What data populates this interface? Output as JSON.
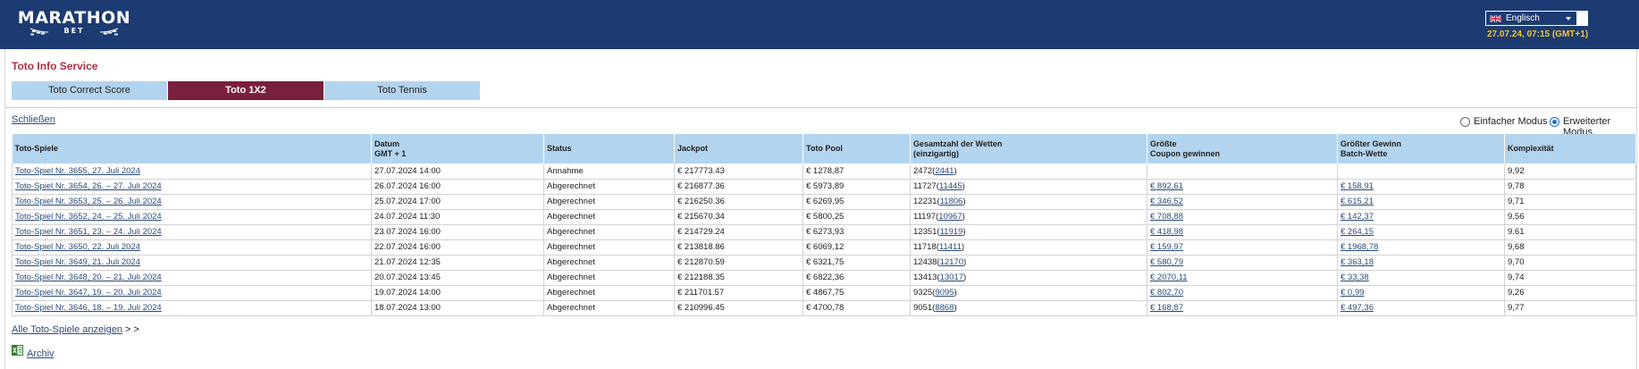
{
  "header": {
    "logo_main": "MARATHON",
    "logo_sub": "BET",
    "language": "Englisch",
    "datetime": "27.07.24,  07:15 (GMT+1)"
  },
  "page": {
    "section_title": "Toto Info Service",
    "tabs": [
      {
        "label": "Toto Correct Score",
        "active": false
      },
      {
        "label": "Toto 1X2",
        "active": true
      },
      {
        "label": "Toto Tennis",
        "active": false
      }
    ],
    "close_label": "Schließen",
    "mode_simple": "Einfacher Modus",
    "mode_extended": "Erweiterter Modus",
    "selected_mode": "extended",
    "all_games_label": "Alle Toto-Spiele anzeigen",
    "all_games_suffix": " > >",
    "archive_label": "Archiv"
  },
  "table": {
    "headers": {
      "game": "Toto-Spiele",
      "date_1": "Datum",
      "date_2": "GMT + 1",
      "status": "Status",
      "jackpot": "Jackpot",
      "pool": "Toto Pool",
      "bets_1": "Gesamtzahl der Wetten",
      "bets_2": "(einzigartig)",
      "coupon_1": "Größte",
      "coupon_2": "Coupon gewinnen",
      "batch_1": "Größter Gewinn",
      "batch_2": "Batch-Wette",
      "complexity": "Komplexität"
    },
    "rows": [
      {
        "game": "Toto-Spiel Nr. 3655, 27. Juli 2024",
        "date": "27.07.2024 14:00",
        "status": "Annahme",
        "jackpot": "€ 217773.43",
        "pool": "€ 1278,87",
        "bets": "2472",
        "unique": "2441",
        "coupon": "",
        "batch": "",
        "complexity": "9,92"
      },
      {
        "game": "Toto-Spiel Nr. 3654, 26. – 27. Juli 2024",
        "date": "26.07.2024 16:00",
        "status": "Abgerechnet",
        "jackpot": "€ 216877.36",
        "pool": "€ 5973,89",
        "bets": "11727",
        "unique": "11445",
        "coupon": "€ 892,61",
        "batch": "€ 158,91",
        "complexity": "9,78"
      },
      {
        "game": "Toto-Spiel Nr. 3653, 25. – 26. Juli 2024",
        "date": "25.07.2024 17:00",
        "status": "Abgerechnet",
        "jackpot": "€ 216250.36",
        "pool": "€ 6269,95",
        "bets": "12231",
        "unique": "11806",
        "coupon": "€ 346,52",
        "batch": "€ 615,21",
        "complexity": "9,71"
      },
      {
        "game": "Toto-Spiel Nr. 3652, 24. – 25. Juli 2024",
        "date": "24.07.2024 11:30",
        "status": "Abgerechnet",
        "jackpot": "€ 215670.34",
        "pool": "€ 5800,25",
        "bets": "11197",
        "unique": "10967",
        "coupon": "€ 708,88",
        "batch": "€ 142,37",
        "complexity": "9,56"
      },
      {
        "game": "Toto-Spiel Nr. 3651, 23. – 24. Juli 2024",
        "date": "23.07.2024 16:00",
        "status": "Abgerechnet",
        "jackpot": "€ 214729.24",
        "pool": "€ 6273,93",
        "bets": "12351",
        "unique": "11919",
        "coupon": "€ 418,98",
        "batch": "€ 264,15",
        "complexity": "9.61"
      },
      {
        "game": "Toto-Spiel Nr. 3650, 22. Juli 2024",
        "date": "22.07.2024 16:00",
        "status": "Abgerechnet",
        "jackpot": "€ 213818.86",
        "pool": "€ 6069,12",
        "bets": "11718",
        "unique": "11411",
        "coupon": "€ 159,97",
        "batch": "€ 1968,78",
        "complexity": "9,68"
      },
      {
        "game": "Toto-Spiel Nr. 3649, 21. Juli 2024",
        "date": "21.07.2024 12:35",
        "status": "Abgerechnet",
        "jackpot": "€ 212870.59",
        "pool": "€ 6321,75",
        "bets": "12438",
        "unique": "12170",
        "coupon": "€ 580,79",
        "batch": "€ 363,18",
        "complexity": "9,70"
      },
      {
        "game": "Toto-Spiel Nr. 3648, 20. – 21. Juli 2024",
        "date": "20.07.2024 13:45",
        "status": "Abgerechnet",
        "jackpot": "€ 212188.35",
        "pool": "€ 6822,36",
        "bets": "13413",
        "unique": "13017",
        "coupon": "€ 2070,11",
        "batch": "€ 33,38",
        "complexity": "9,74"
      },
      {
        "game": "Toto-Spiel Nr. 3647, 19. – 20. Juli 2024",
        "date": "19.07.2024 14:00",
        "status": "Abgerechnet",
        "jackpot": "€ 211701.57",
        "pool": "€ 4867,75",
        "bets": "9325",
        "unique": "9095",
        "coupon": "€ 802,70",
        "batch": "€ 0,99",
        "complexity": "9,26"
      },
      {
        "game": "Toto-Spiel Nr. 3646, 18. – 19. Juli 2024",
        "date": "18.07.2024 13:00",
        "status": "Abgerechnet",
        "jackpot": "€ 210996.45",
        "pool": "€ 4700,78",
        "bets": "9051",
        "unique": "8868",
        "coupon": "€ 168,87",
        "batch": "€ 497,36",
        "complexity": "9,77"
      }
    ]
  },
  "colors": {
    "header_bg": "#1c3b72",
    "tab_active": "#7a1f3d",
    "tab_inactive": "#b3d4ee",
    "title_red": "#b03040",
    "datetime_yellow": "#f4c430",
    "link_blue": "#2a4a78"
  },
  "icons": {
    "flag": "uk-flag-icon",
    "dropdown": "chevron-down-icon",
    "archive": "excel-file-icon",
    "laurel": "laurel-icon"
  }
}
